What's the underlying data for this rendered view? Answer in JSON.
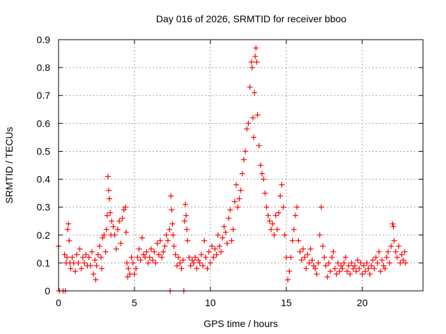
{
  "chart_data": {
    "type": "scatter",
    "title": "Day 016 of 2026, SRMTID for receiver bboo",
    "xlabel": "GPS time / hours",
    "ylabel": "SRMTID / TECUs",
    "xlim": [
      0,
      24
    ],
    "ylim": [
      0,
      0.9
    ],
    "xticks": [
      0,
      5,
      10,
      15,
      20
    ],
    "yticks": [
      0,
      0.1,
      0.2,
      0.3,
      0.4,
      0.5,
      0.6,
      0.7,
      0.8,
      0.9
    ],
    "grid": true,
    "marker": "+",
    "color": "#ff0000",
    "series": [
      {
        "name": "SRMTID",
        "points": [
          [
            0.0,
            0.16
          ],
          [
            0.05,
            0.0
          ],
          [
            0.3,
            0.0
          ],
          [
            0.45,
            0.0
          ],
          [
            0.4,
            0.13
          ],
          [
            0.5,
            0.1
          ],
          [
            0.55,
            0.12
          ],
          [
            0.6,
            0.22
          ],
          [
            0.65,
            0.24
          ],
          [
            0.7,
            0.18
          ],
          [
            0.75,
            0.1
          ],
          [
            0.8,
            0.08
          ],
          [
            0.9,
            0.12
          ],
          [
            1.0,
            0.1
          ],
          [
            1.1,
            0.07
          ],
          [
            1.2,
            0.13
          ],
          [
            1.3,
            0.1
          ],
          [
            1.4,
            0.15
          ],
          [
            1.5,
            0.08
          ],
          [
            1.6,
            0.12
          ],
          [
            1.7,
            0.1
          ],
          [
            1.8,
            0.13
          ],
          [
            1.9,
            0.09
          ],
          [
            2.0,
            0.12
          ],
          [
            2.1,
            0.09
          ],
          [
            2.2,
            0.14
          ],
          [
            2.3,
            0.06
          ],
          [
            2.4,
            0.11
          ],
          [
            2.45,
            0.04
          ],
          [
            2.5,
            0.09
          ],
          [
            2.6,
            0.13
          ],
          [
            2.7,
            0.16
          ],
          [
            2.8,
            0.12
          ],
          [
            2.85,
            0.08
          ],
          [
            2.9,
            0.19
          ],
          [
            3.0,
            0.2
          ],
          [
            3.1,
            0.14
          ],
          [
            3.15,
            0.22
          ],
          [
            3.2,
            0.27
          ],
          [
            3.25,
            0.41
          ],
          [
            3.3,
            0.36
          ],
          [
            3.35,
            0.33
          ],
          [
            3.4,
            0.28
          ],
          [
            3.45,
            0.2
          ],
          [
            3.5,
            0.25
          ],
          [
            3.6,
            0.23
          ],
          [
            3.7,
            0.2
          ],
          [
            3.8,
            0.15
          ],
          [
            3.9,
            0.22
          ],
          [
            4.0,
            0.25
          ],
          [
            4.1,
            0.17
          ],
          [
            4.2,
            0.26
          ],
          [
            4.3,
            0.29
          ],
          [
            4.4,
            0.3
          ],
          [
            4.45,
            0.21
          ],
          [
            4.5,
            0.1
          ],
          [
            4.55,
            0.05
          ],
          [
            4.6,
            0.08
          ],
          [
            4.7,
            0.06
          ],
          [
            4.8,
            0.12
          ],
          [
            4.9,
            0.1
          ],
          [
            5.0,
            0.06
          ],
          [
            5.1,
            0.08
          ],
          [
            5.2,
            0.12
          ],
          [
            5.3,
            0.15
          ],
          [
            5.4,
            0.11
          ],
          [
            5.5,
            0.19
          ],
          [
            5.6,
            0.13
          ],
          [
            5.7,
            0.12
          ],
          [
            5.8,
            0.14
          ],
          [
            5.9,
            0.1
          ],
          [
            6.0,
            0.12
          ],
          [
            6.1,
            0.15
          ],
          [
            6.2,
            0.11
          ],
          [
            6.3,
            0.14
          ],
          [
            6.4,
            0.1
          ],
          [
            6.5,
            0.17
          ],
          [
            6.6,
            0.13
          ],
          [
            6.7,
            0.18
          ],
          [
            6.8,
            0.12
          ],
          [
            6.9,
            0.14
          ],
          [
            7.0,
            0.16
          ],
          [
            7.1,
            0.2
          ],
          [
            7.2,
            0.18
          ],
          [
            7.3,
            0.22
          ],
          [
            7.35,
            0.0
          ],
          [
            7.4,
            0.34
          ],
          [
            7.45,
            0.29
          ],
          [
            7.5,
            0.24
          ],
          [
            7.55,
            0.2
          ],
          [
            7.6,
            0.16
          ],
          [
            7.7,
            0.13
          ],
          [
            7.8,
            0.09
          ],
          [
            7.9,
            0.12
          ],
          [
            8.0,
            0.1
          ],
          [
            8.1,
            0.08
          ],
          [
            8.2,
            0.11
          ],
          [
            8.25,
            0.0
          ],
          [
            8.3,
            0.25
          ],
          [
            8.35,
            0.31
          ],
          [
            8.4,
            0.27
          ],
          [
            8.45,
            0.22
          ],
          [
            8.5,
            0.18
          ],
          [
            8.6,
            0.12
          ],
          [
            8.7,
            0.09
          ],
          [
            8.8,
            0.11
          ],
          [
            8.9,
            0.1
          ],
          [
            9.0,
            0.12
          ],
          [
            9.1,
            0.08
          ],
          [
            9.2,
            0.11
          ],
          [
            9.3,
            0.1
          ],
          [
            9.4,
            0.13
          ],
          [
            9.5,
            0.09
          ],
          [
            9.6,
            0.18
          ],
          [
            9.7,
            0.12
          ],
          [
            9.8,
            0.08
          ],
          [
            9.9,
            0.14
          ],
          [
            10.0,
            0.1
          ],
          [
            10.1,
            0.16
          ],
          [
            10.2,
            0.12
          ],
          [
            10.3,
            0.15
          ],
          [
            10.4,
            0.13
          ],
          [
            10.5,
            0.2
          ],
          [
            10.6,
            0.16
          ],
          [
            10.7,
            0.14
          ],
          [
            10.8,
            0.19
          ],
          [
            10.9,
            0.23
          ],
          [
            11.0,
            0.21
          ],
          [
            11.1,
            0.17
          ],
          [
            11.2,
            0.26
          ],
          [
            11.3,
            0.29
          ],
          [
            11.4,
            0.18
          ],
          [
            11.5,
            0.22
          ],
          [
            11.6,
            0.32
          ],
          [
            11.7,
            0.38
          ],
          [
            11.8,
            0.3
          ],
          [
            11.9,
            0.33
          ],
          [
            12.0,
            0.36
          ],
          [
            12.1,
            0.42
          ],
          [
            12.2,
            0.47
          ],
          [
            12.3,
            0.5
          ],
          [
            12.4,
            0.58
          ],
          [
            12.5,
            0.6
          ],
          [
            12.6,
            0.73
          ],
          [
            12.7,
            0.82
          ],
          [
            12.75,
            0.8
          ],
          [
            12.8,
            0.62
          ],
          [
            12.85,
            0.55
          ],
          [
            12.9,
            0.71
          ],
          [
            12.95,
            0.84
          ],
          [
            13.0,
            0.87
          ],
          [
            13.05,
            0.82
          ],
          [
            13.1,
            0.63
          ],
          [
            13.2,
            0.52
          ],
          [
            13.3,
            0.45
          ],
          [
            13.4,
            0.42
          ],
          [
            13.5,
            0.4
          ],
          [
            13.6,
            0.35
          ],
          [
            13.7,
            0.3
          ],
          [
            13.8,
            0.27
          ],
          [
            13.9,
            0.25
          ],
          [
            14.0,
            0.22
          ],
          [
            14.1,
            0.24
          ],
          [
            14.2,
            0.2
          ],
          [
            14.3,
            0.27
          ],
          [
            14.4,
            0.22
          ],
          [
            14.5,
            0.28
          ],
          [
            14.6,
            0.34
          ],
          [
            14.7,
            0.38
          ],
          [
            14.8,
            0.3
          ],
          [
            14.9,
            0.2
          ],
          [
            15.0,
            0.12
          ],
          [
            15.1,
            0.04
          ],
          [
            15.2,
            0.07
          ],
          [
            15.3,
            0.12
          ],
          [
            15.4,
            0.18
          ],
          [
            15.5,
            0.22
          ],
          [
            15.6,
            0.27
          ],
          [
            15.7,
            0.3
          ],
          [
            15.8,
            0.18
          ],
          [
            15.9,
            0.14
          ],
          [
            16.0,
            0.11
          ],
          [
            16.1,
            0.15
          ],
          [
            16.2,
            0.12
          ],
          [
            16.3,
            0.08
          ],
          [
            16.4,
            0.13
          ],
          [
            16.5,
            0.1
          ],
          [
            16.6,
            0.15
          ],
          [
            16.7,
            0.11
          ],
          [
            16.8,
            0.09
          ],
          [
            16.9,
            0.08
          ],
          [
            17.0,
            0.06
          ],
          [
            17.1,
            0.1
          ],
          [
            17.2,
            0.2
          ],
          [
            17.3,
            0.3
          ],
          [
            17.4,
            0.16
          ],
          [
            17.5,
            0.12
          ],
          [
            17.6,
            0.09
          ],
          [
            17.7,
            0.05
          ],
          [
            17.8,
            0.1
          ],
          [
            17.9,
            0.07
          ],
          [
            18.0,
            0.12
          ],
          [
            18.1,
            0.14
          ],
          [
            18.2,
            0.08
          ],
          [
            18.3,
            0.06
          ],
          [
            18.4,
            0.1
          ],
          [
            18.5,
            0.07
          ],
          [
            18.6,
            0.09
          ],
          [
            18.7,
            0.08
          ],
          [
            18.8,
            0.1
          ],
          [
            18.9,
            0.12
          ],
          [
            19.0,
            0.07
          ],
          [
            19.1,
            0.09
          ],
          [
            19.2,
            0.06
          ],
          [
            19.3,
            0.1
          ],
          [
            19.4,
            0.08
          ],
          [
            19.5,
            0.09
          ],
          [
            19.6,
            0.07
          ],
          [
            19.7,
            0.11
          ],
          [
            19.8,
            0.08
          ],
          [
            19.9,
            0.1
          ],
          [
            20.0,
            0.06
          ],
          [
            20.1,
            0.09
          ],
          [
            20.2,
            0.07
          ],
          [
            20.3,
            0.1
          ],
          [
            20.4,
            0.08
          ],
          [
            20.5,
            0.06
          ],
          [
            20.6,
            0.09
          ],
          [
            20.7,
            0.11
          ],
          [
            20.8,
            0.08
          ],
          [
            20.9,
            0.12
          ],
          [
            21.0,
            0.1
          ],
          [
            21.1,
            0.14
          ],
          [
            21.2,
            0.07
          ],
          [
            21.3,
            0.11
          ],
          [
            21.4,
            0.09
          ],
          [
            21.5,
            0.08
          ],
          [
            21.6,
            0.12
          ],
          [
            21.7,
            0.14
          ],
          [
            21.8,
            0.1
          ],
          [
            21.9,
            0.16
          ],
          [
            22.0,
            0.24
          ],
          [
            22.05,
            0.23
          ],
          [
            22.1,
            0.18
          ],
          [
            22.2,
            0.14
          ],
          [
            22.3,
            0.12
          ],
          [
            22.4,
            0.16
          ],
          [
            22.5,
            0.1
          ],
          [
            22.6,
            0.13
          ],
          [
            22.7,
            0.11
          ],
          [
            22.8,
            0.14
          ],
          [
            22.85,
            0.1
          ]
        ]
      }
    ]
  }
}
